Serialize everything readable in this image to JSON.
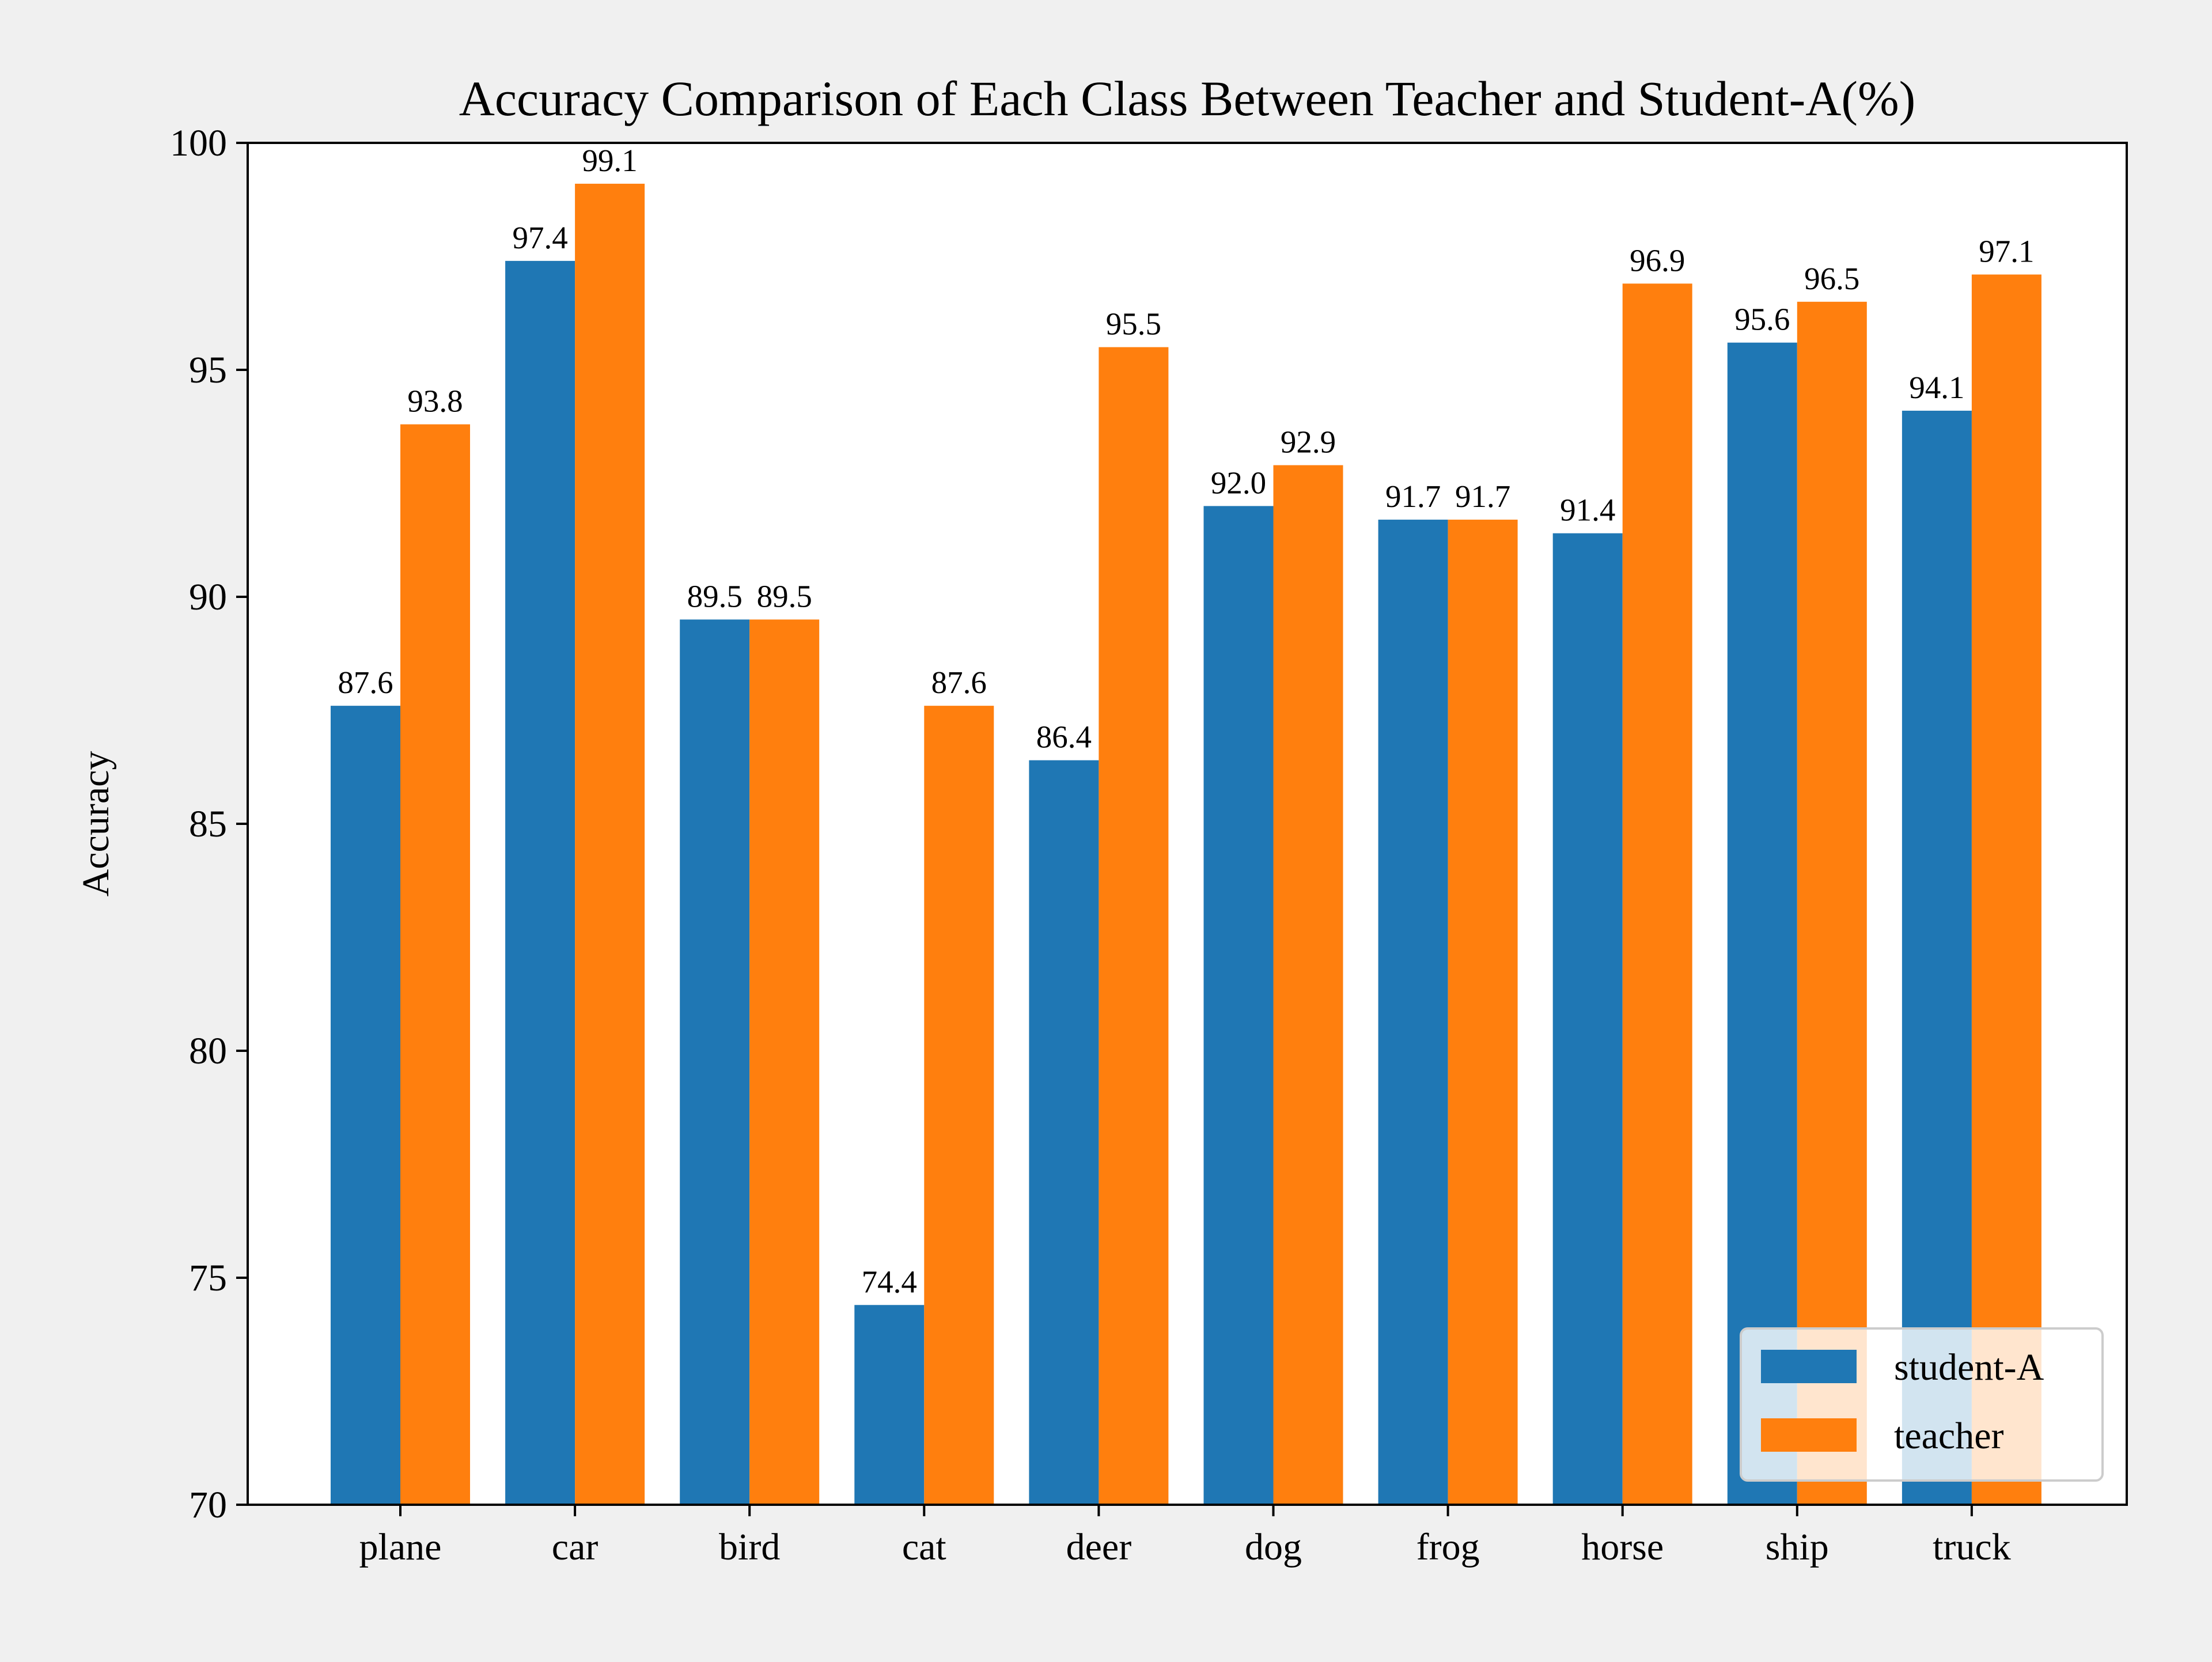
{
  "chart_data": {
    "type": "bar",
    "title": "Accuracy Comparison of Each Class Between Teacher and Student-A(%)",
    "xlabel": "",
    "ylabel": "Accuracy",
    "ylim": [
      70,
      100
    ],
    "yticks": [
      70,
      75,
      80,
      85,
      90,
      95,
      100
    ],
    "categories": [
      "plane",
      "car",
      "bird",
      "cat",
      "deer",
      "dog",
      "frog",
      "horse",
      "ship",
      "truck"
    ],
    "series": [
      {
        "name": "student-A",
        "color": "#1f77b4",
        "values": [
          87.6,
          97.4,
          89.5,
          74.4,
          86.4,
          92.0,
          91.7,
          91.4,
          95.6,
          94.1
        ],
        "labels": [
          "87.6",
          "97.4",
          "89.5",
          "74.4",
          "86.4",
          "92.0",
          "91.7",
          "91.4",
          "95.6",
          "94.1"
        ]
      },
      {
        "name": "teacher",
        "color": "#ff7f0e",
        "values": [
          93.8,
          99.1,
          89.5,
          87.6,
          95.5,
          92.9,
          91.7,
          96.9,
          96.5,
          97.1
        ],
        "labels": [
          "93.8",
          "99.1",
          "89.5",
          "87.6",
          "95.5",
          "92.9",
          "91.7",
          "96.9",
          "96.5",
          "97.1"
        ]
      }
    ],
    "legend": {
      "position": "lower-right"
    },
    "grid": false
  }
}
